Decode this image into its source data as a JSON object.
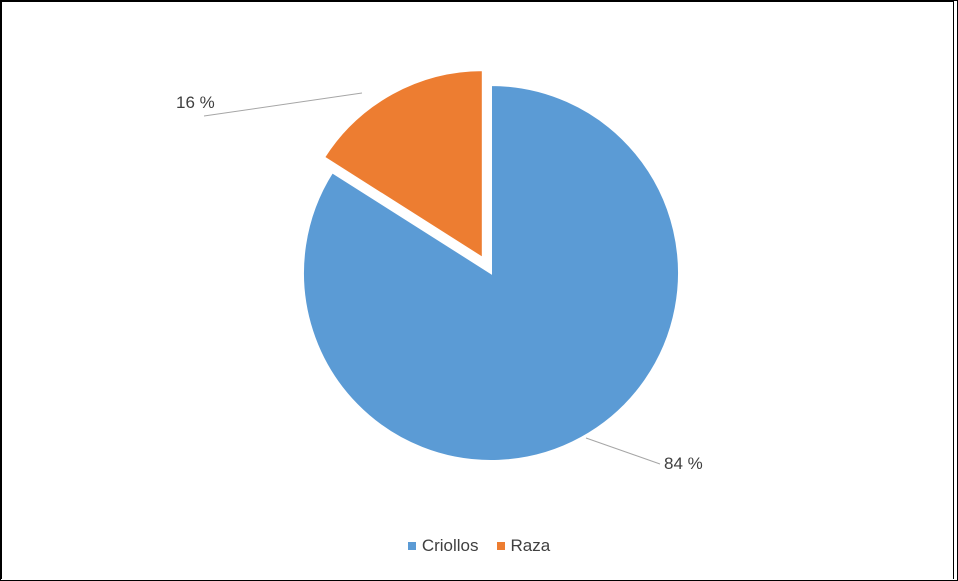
{
  "chart_data": {
    "type": "pie",
    "title": "",
    "series": [
      {
        "categories": [
          "Criollos",
          "Raza"
        ],
        "values": [
          84,
          16
        ],
        "labels": [
          "84 %",
          "16 %"
        ]
      }
    ],
    "colors": {
      "Criollos": "#5b9bd5",
      "Raza": "#ed7d31"
    },
    "exploded": [
      "Raza"
    ],
    "legend_position": "bottom",
    "legend": [
      "Criollos",
      "Raza"
    ]
  }
}
